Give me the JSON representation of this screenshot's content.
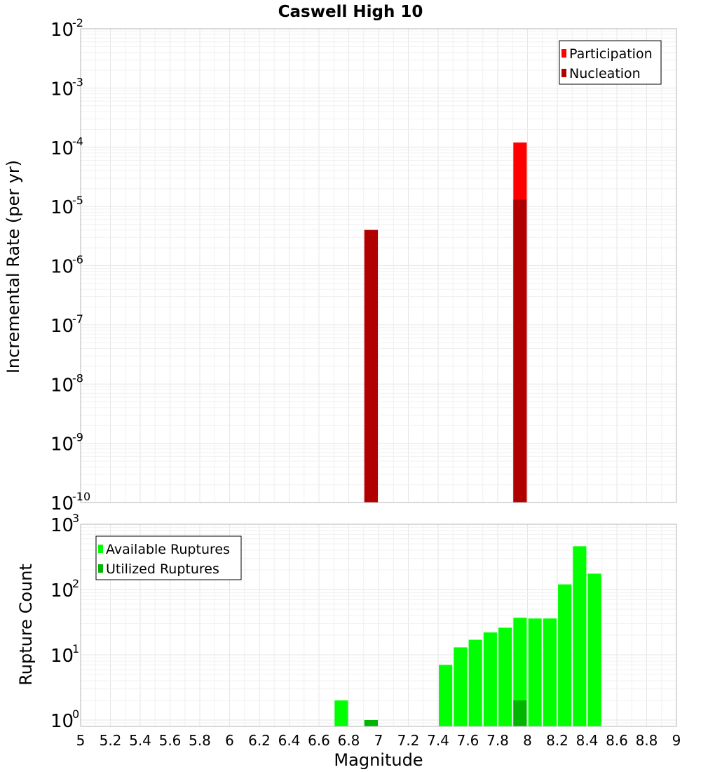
{
  "chart_data": [
    {
      "type": "bar",
      "title": "Caswell High 10",
      "xlabel": "",
      "ylabel": "Incremental Rate (per yr)",
      "yscale": "log",
      "ylim": [
        1e-10,
        0.01
      ],
      "ytick_exponents": [
        -10,
        -9,
        -8,
        -7,
        -6,
        -5,
        -4,
        -3,
        -2
      ],
      "ytick_base": "10",
      "xlim": [
        5,
        9
      ],
      "legend_position": "top-right",
      "bar_width": 0.09,
      "series": [
        {
          "name": "Participation",
          "color": "#ff0000",
          "x": [
            6.95,
            7.95
          ],
          "values": [
            4e-06,
            0.00012
          ]
        },
        {
          "name": "Nucleation",
          "color": "#b00000",
          "x": [
            6.95,
            7.95
          ],
          "values": [
            4e-06,
            1.3e-05
          ]
        }
      ]
    },
    {
      "type": "bar",
      "title": "",
      "xlabel": "Magnitude",
      "ylabel": "Rupture Count",
      "yscale": "log",
      "ylim": [
        0.8,
        1000
      ],
      "ytick_exponents": [
        0,
        1,
        2,
        3
      ],
      "ytick_base": "10",
      "xlim": [
        5,
        9
      ],
      "xticks": [
        "5",
        "5.2",
        "5.4",
        "5.6",
        "5.8",
        "6",
        "6.2",
        "6.4",
        "6.6",
        "6.8",
        "7",
        "7.2",
        "7.4",
        "7.6",
        "7.8",
        "8",
        "8.2",
        "8.4",
        "8.6",
        "8.8",
        "9"
      ],
      "legend_position": "top-left",
      "bar_width": 0.09,
      "series": [
        {
          "name": "Available Ruptures",
          "color": "#00ff00",
          "x": [
            6.75,
            6.95,
            7.45,
            7.55,
            7.65,
            7.75,
            7.85,
            7.95,
            8.05,
            8.15,
            8.25,
            8.35,
            8.45
          ],
          "values": [
            2,
            1,
            7,
            13,
            17,
            22,
            26,
            37,
            36,
            36,
            120,
            460,
            175
          ]
        },
        {
          "name": "Utilized Ruptures",
          "color": "#00b400",
          "x": [
            6.95,
            7.95
          ],
          "values": [
            1,
            2
          ]
        }
      ]
    }
  ]
}
